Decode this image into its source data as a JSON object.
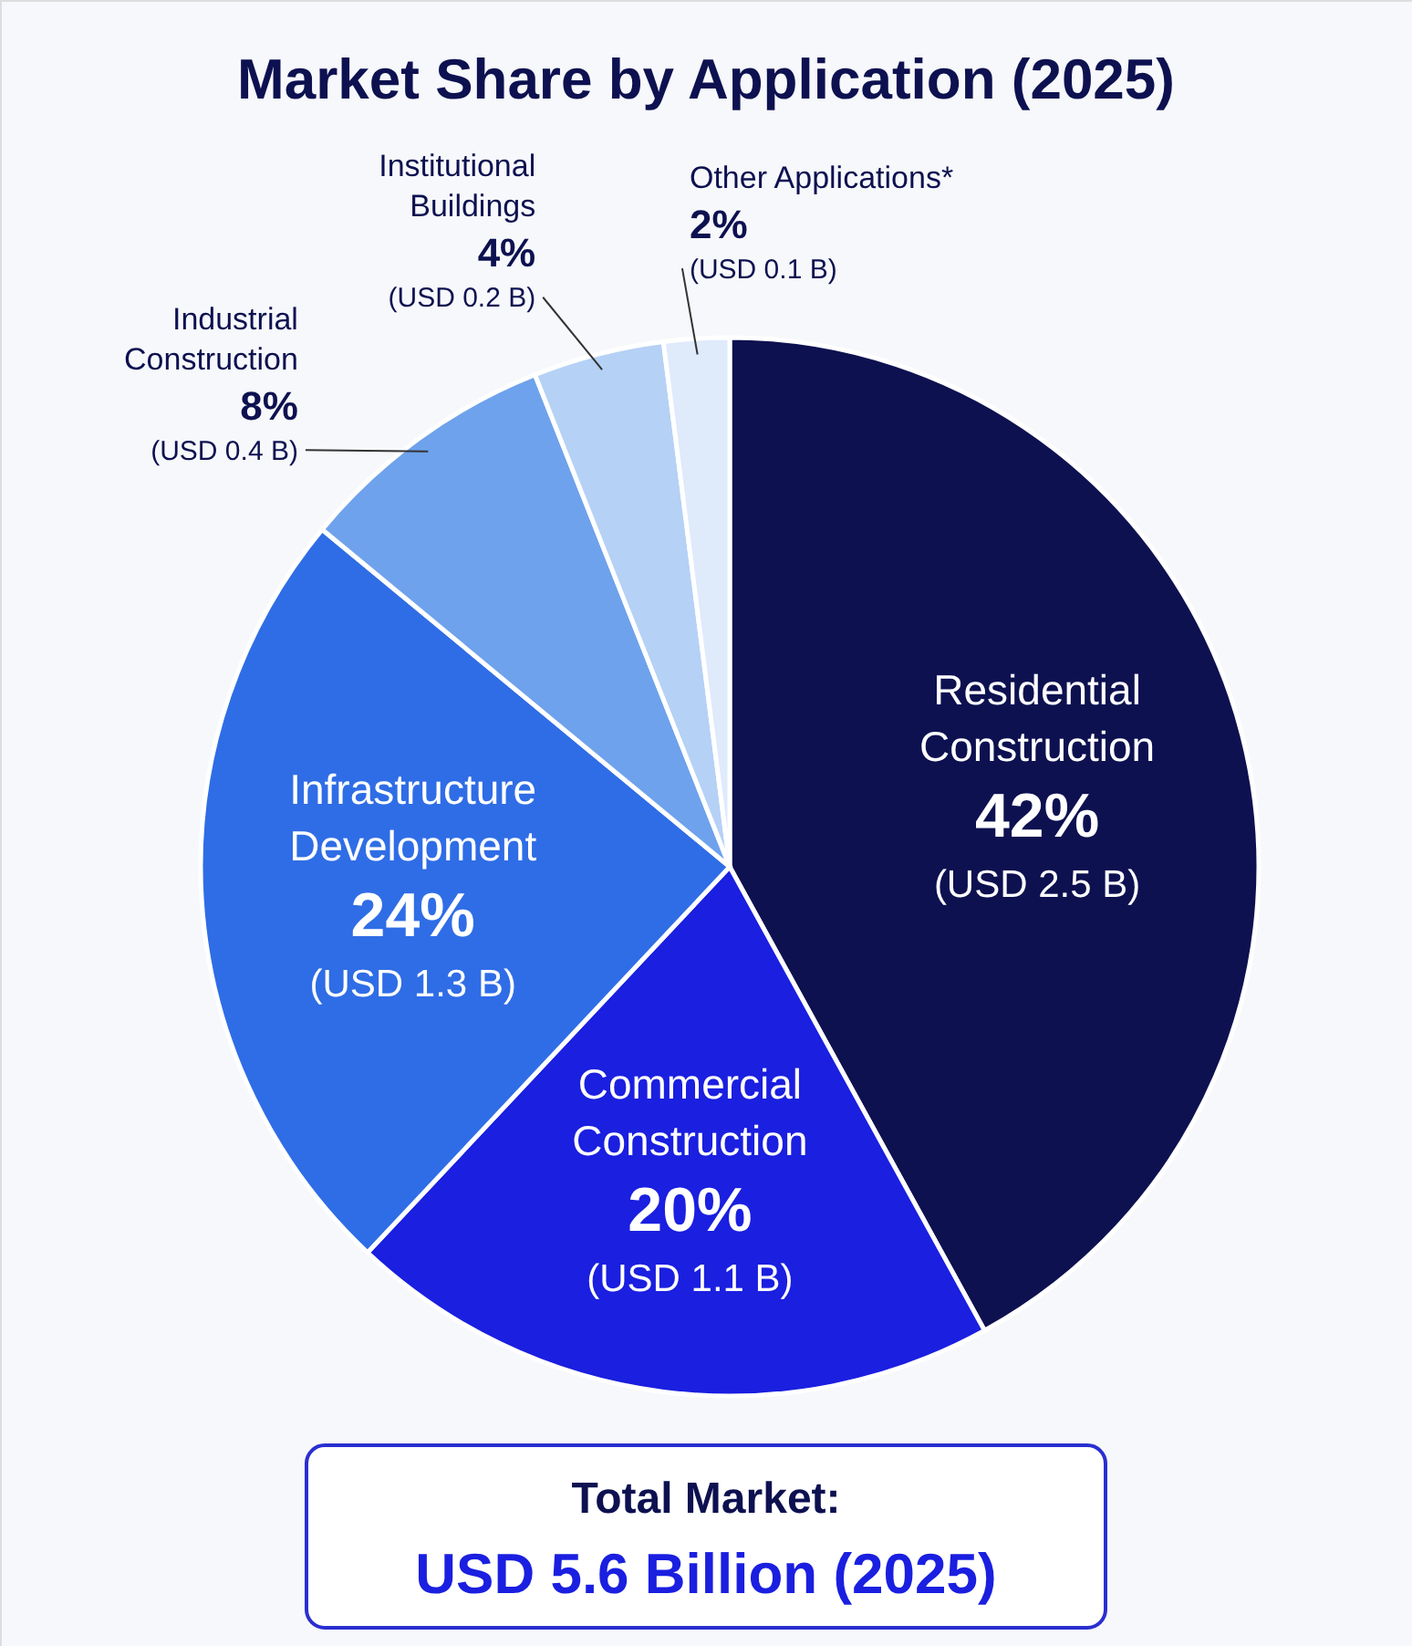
{
  "chart_data": {
    "type": "pie",
    "title": "Market Share by Application (2025)",
    "categories": [
      "Residential\nConstruction",
      "Commercial\nConstruction",
      "Infrastructure\nDevelopment",
      "Industrial\nConstruction",
      "Institutional\nBuildings",
      "Other Applications*"
    ],
    "values": [
      42,
      20,
      24,
      8,
      4,
      2
    ],
    "colors": [
      "#0d1150",
      "#1a1fe0",
      "#2f6de6",
      "#6ea2ec",
      "#b5d1f5",
      "#dfeafb"
    ],
    "value_labels": [
      "42%\n(USD 2.5 B)",
      "20%\n(USD 1.1 B)",
      "24%\n(USD 1.3 B)",
      "8%\n(USD 0.4 B)",
      "4%\n(USD 0.2 B)",
      "2%\n(USD 0.1 B)"
    ],
    "annotations": [
      "Total Market:",
      "USD 5.6 Billion (2025)"
    ]
  }
}
